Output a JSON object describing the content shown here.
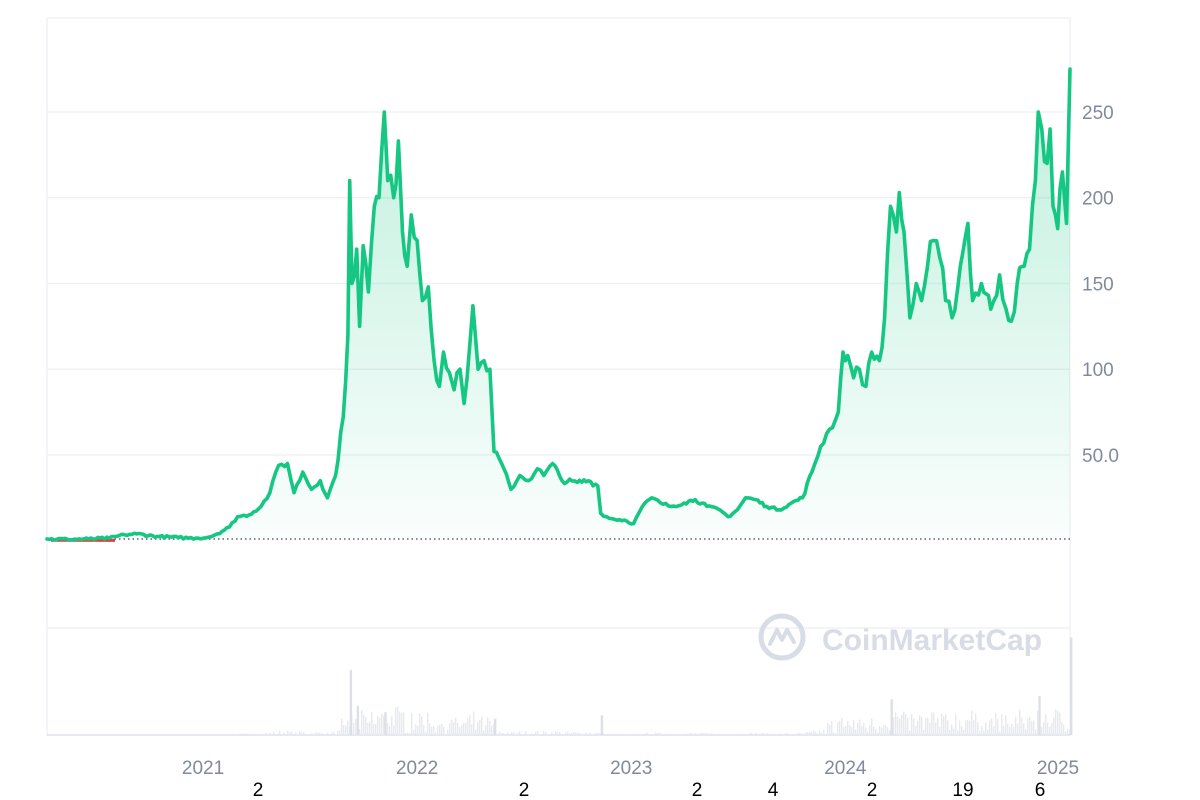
{
  "chart_data": {
    "type": "area",
    "x_ticks": [
      "2021",
      "2022",
      "2023",
      "2024",
      "2025"
    ],
    "y_ticks": [
      {
        "value": 50,
        "label": "50.0"
      },
      {
        "value": 100,
        "label": "100"
      },
      {
        "value": 150,
        "label": "150"
      },
      {
        "value": 200,
        "label": "200"
      },
      {
        "value": 250,
        "label": "250"
      }
    ],
    "ylim": [
      0,
      300
    ],
    "grid": true,
    "baseline": 1.0,
    "colors": {
      "up": "#16c784",
      "down": "#ea3943",
      "grid": "#eff2f5",
      "volume": "#e6e9ee"
    },
    "series": [
      {
        "points": [
          [
            "2020-04-10",
            1.0
          ],
          [
            "2020-05-15",
            0.8
          ],
          [
            "2020-06-20",
            1.0
          ],
          [
            "2020-07-25",
            1.5
          ],
          [
            "2020-08-20",
            3.5
          ],
          [
            "2020-09-10",
            4.0
          ],
          [
            "2020-10-15",
            2.5
          ],
          [
            "2020-11-20",
            1.8
          ],
          [
            "2020-12-20",
            1.5
          ],
          [
            "2021-01-10",
            2.0
          ],
          [
            "2021-01-25",
            4.0
          ],
          [
            "2021-02-15",
            8.0
          ],
          [
            "2021-03-01",
            14.0
          ],
          [
            "2021-03-20",
            15.0
          ],
          [
            "2021-04-10",
            20.0
          ],
          [
            "2021-04-25",
            28.0
          ],
          [
            "2021-05-10",
            44.0
          ],
          [
            "2021-05-25",
            45.0
          ],
          [
            "2021-06-05",
            28.0
          ],
          [
            "2021-06-20",
            40.0
          ],
          [
            "2021-07-05",
            30.0
          ],
          [
            "2021-07-20",
            35.0
          ],
          [
            "2021-08-01",
            25.0
          ],
          [
            "2021-08-15",
            38.0
          ],
          [
            "2021-08-28",
            72.0
          ],
          [
            "2021-09-05",
            120.0
          ],
          [
            "2021-09-08",
            210.0
          ],
          [
            "2021-09-12",
            150.0
          ],
          [
            "2021-09-20",
            170.0
          ],
          [
            "2021-09-25",
            125.0
          ],
          [
            "2021-10-01",
            172.0
          ],
          [
            "2021-10-10",
            145.0
          ],
          [
            "2021-10-20",
            195.0
          ],
          [
            "2021-10-28",
            200.0
          ],
          [
            "2021-11-06",
            250.0
          ],
          [
            "2021-11-12",
            210.0
          ],
          [
            "2021-11-22",
            200.0
          ],
          [
            "2021-11-30",
            233.0
          ],
          [
            "2021-12-07",
            180.0
          ],
          [
            "2021-12-15",
            160.0
          ],
          [
            "2021-12-22",
            190.0
          ],
          [
            "2022-01-01",
            175.0
          ],
          [
            "2022-01-10",
            140.0
          ],
          [
            "2022-01-20",
            148.0
          ],
          [
            "2022-01-30",
            105.0
          ],
          [
            "2022-02-08",
            90.0
          ],
          [
            "2022-02-15",
            110.0
          ],
          [
            "2022-02-25",
            98.0
          ],
          [
            "2022-03-05",
            88.0
          ],
          [
            "2022-03-15",
            100.0
          ],
          [
            "2022-03-22",
            80.0
          ],
          [
            "2022-04-01",
            115.0
          ],
          [
            "2022-04-06",
            137.0
          ],
          [
            "2022-04-15",
            100.0
          ],
          [
            "2022-04-25",
            105.0
          ],
          [
            "2022-05-05",
            100.0
          ],
          [
            "2022-05-12",
            52.0
          ],
          [
            "2022-05-25",
            45.0
          ],
          [
            "2022-06-10",
            30.0
          ],
          [
            "2022-06-25",
            38.0
          ],
          [
            "2022-07-10",
            35.0
          ],
          [
            "2022-07-25",
            42.0
          ],
          [
            "2022-08-05",
            38.0
          ],
          [
            "2022-08-20",
            45.0
          ],
          [
            "2022-09-05",
            35.0
          ],
          [
            "2022-10-01",
            34.0
          ],
          [
            "2022-10-20",
            35.0
          ],
          [
            "2022-11-05",
            32.0
          ],
          [
            "2022-11-10",
            16.0
          ],
          [
            "2022-11-25",
            13.0
          ],
          [
            "2022-12-20",
            12.0
          ],
          [
            "2023-01-05",
            10.0
          ],
          [
            "2023-01-20",
            20.0
          ],
          [
            "2023-02-05",
            25.0
          ],
          [
            "2023-02-20",
            22.0
          ],
          [
            "2023-03-10",
            20.0
          ],
          [
            "2023-04-01",
            22.0
          ],
          [
            "2023-04-20",
            24.0
          ],
          [
            "2023-05-10",
            20.0
          ],
          [
            "2023-06-01",
            18.0
          ],
          [
            "2023-06-15",
            14.0
          ],
          [
            "2023-07-01",
            18.0
          ],
          [
            "2023-07-15",
            25.0
          ],
          [
            "2023-08-01",
            24.0
          ],
          [
            "2023-08-20",
            20.0
          ],
          [
            "2023-09-10",
            18.0
          ],
          [
            "2023-10-01",
            22.0
          ],
          [
            "2023-10-20",
            25.0
          ],
          [
            "2023-11-05",
            40.0
          ],
          [
            "2023-11-20",
            55.0
          ],
          [
            "2023-12-05",
            65.0
          ],
          [
            "2023-12-20",
            75.0
          ],
          [
            "2023-12-28",
            110.0
          ],
          [
            "2024-01-05",
            108.0
          ],
          [
            "2024-01-15",
            95.0
          ],
          [
            "2024-01-25",
            100.0
          ],
          [
            "2024-02-05",
            90.0
          ],
          [
            "2024-02-15",
            110.0
          ],
          [
            "2024-02-28",
            105.0
          ],
          [
            "2024-03-08",
            130.0
          ],
          [
            "2024-03-18",
            195.0
          ],
          [
            "2024-03-28",
            180.0
          ],
          [
            "2024-04-02",
            203.0
          ],
          [
            "2024-04-10",
            180.0
          ],
          [
            "2024-04-20",
            130.0
          ],
          [
            "2024-05-01",
            150.0
          ],
          [
            "2024-05-10",
            140.0
          ],
          [
            "2024-05-20",
            160.0
          ],
          [
            "2024-05-30",
            175.0
          ],
          [
            "2024-06-10",
            165.0
          ],
          [
            "2024-06-20",
            140.0
          ],
          [
            "2024-07-01",
            130.0
          ],
          [
            "2024-07-15",
            160.0
          ],
          [
            "2024-07-28",
            185.0
          ],
          [
            "2024-08-05",
            140.0
          ],
          [
            "2024-08-20",
            150.0
          ],
          [
            "2024-09-05",
            135.0
          ],
          [
            "2024-09-20",
            155.0
          ],
          [
            "2024-10-01",
            135.0
          ],
          [
            "2024-10-10",
            128.0
          ],
          [
            "2024-10-20",
            150.0
          ],
          [
            "2024-11-01",
            160.0
          ],
          [
            "2024-11-10",
            170.0
          ],
          [
            "2024-11-20",
            210.0
          ],
          [
            "2024-11-25",
            250.0
          ],
          [
            "2024-12-01",
            240.0
          ],
          [
            "2024-12-10",
            220.0
          ],
          [
            "2024-12-15",
            240.0
          ],
          [
            "2024-12-20",
            195.0
          ],
          [
            "2024-12-28",
            182.0
          ],
          [
            "2025-01-05",
            215.0
          ],
          [
            "2025-01-12",
            185.0
          ],
          [
            "2025-01-18",
            275.0
          ]
        ]
      }
    ],
    "volume_spikes": [
      [
        "2021-09-08",
        1.0
      ],
      [
        "2021-09-20",
        0.45
      ],
      [
        "2021-11-06",
        0.35
      ],
      [
        "2022-05-12",
        0.25
      ],
      [
        "2022-11-10",
        0.3
      ],
      [
        "2024-03-18",
        0.55
      ],
      [
        "2024-11-25",
        0.6
      ],
      [
        "2025-01-18",
        1.5
      ]
    ],
    "footer_numbers": [
      "2",
      "2",
      "2",
      "4",
      "2",
      "19",
      "6"
    ]
  },
  "watermark": {
    "text": "CoinMarketCap",
    "icon": "coinmarketcap-logo-icon"
  }
}
